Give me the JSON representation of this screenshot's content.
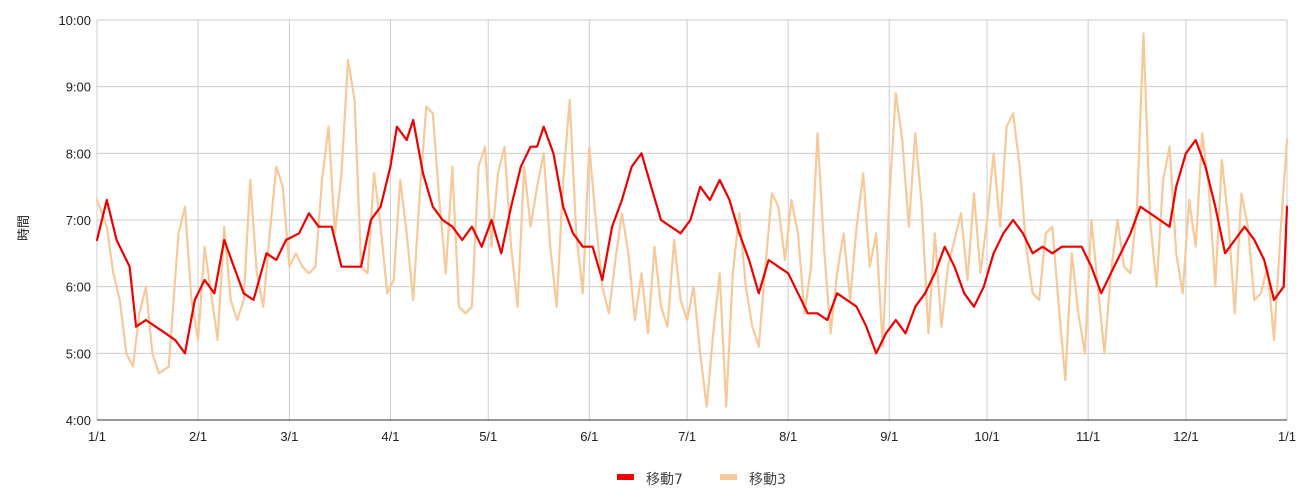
{
  "chart_data": {
    "type": "line",
    "ylabel": "時間",
    "xlabel": "",
    "title": "",
    "y_ticks": [
      "4:00",
      "5:00",
      "6:00",
      "7:00",
      "8:00",
      "9:00",
      "10:00"
    ],
    "ylim": [
      4,
      10
    ],
    "x_ticks": [
      "1/1",
      "2/1",
      "3/1",
      "4/1",
      "5/1",
      "6/1",
      "7/1",
      "8/1",
      "9/1",
      "10/1",
      "11/1",
      "12/1",
      "1/1"
    ],
    "x_unit": "day_of_year",
    "xlim": [
      0,
      365
    ],
    "grid": true,
    "legend": {
      "position": "bottom"
    },
    "series": [
      {
        "name": "移動7",
        "color": "#ee0000",
        "points": [
          [
            0,
            6.7
          ],
          [
            3,
            7.3
          ],
          [
            6,
            6.7
          ],
          [
            10,
            6.3
          ],
          [
            12,
            5.4
          ],
          [
            15,
            5.5
          ],
          [
            18,
            5.4
          ],
          [
            21,
            5.3
          ],
          [
            24,
            5.2
          ],
          [
            27,
            5.0
          ],
          [
            30,
            5.8
          ],
          [
            33,
            6.1
          ],
          [
            36,
            5.9
          ],
          [
            39,
            6.7
          ],
          [
            42,
            6.3
          ],
          [
            45,
            5.9
          ],
          [
            48,
            5.8
          ],
          [
            52,
            6.5
          ],
          [
            55,
            6.4
          ],
          [
            58,
            6.7
          ],
          [
            62,
            6.8
          ],
          [
            65,
            7.1
          ],
          [
            68,
            6.9
          ],
          [
            72,
            6.9
          ],
          [
            75,
            6.3
          ],
          [
            78,
            6.3
          ],
          [
            81,
            6.3
          ],
          [
            84,
            7.0
          ],
          [
            87,
            7.2
          ],
          [
            90,
            7.8
          ],
          [
            92,
            8.4
          ],
          [
            95,
            8.2
          ],
          [
            97,
            8.5
          ],
          [
            100,
            7.7
          ],
          [
            103,
            7.2
          ],
          [
            106,
            7.0
          ],
          [
            109,
            6.9
          ],
          [
            112,
            6.7
          ],
          [
            115,
            6.9
          ],
          [
            118,
            6.6
          ],
          [
            121,
            7.0
          ],
          [
            124,
            6.5
          ],
          [
            127,
            7.2
          ],
          [
            130,
            7.8
          ],
          [
            133,
            8.1
          ],
          [
            135,
            8.1
          ],
          [
            137,
            8.4
          ],
          [
            140,
            8.0
          ],
          [
            143,
            7.2
          ],
          [
            146,
            6.8
          ],
          [
            149,
            6.6
          ],
          [
            152,
            6.6
          ],
          [
            155,
            6.1
          ],
          [
            158,
            6.9
          ],
          [
            161,
            7.3
          ],
          [
            164,
            7.8
          ],
          [
            167,
            8.0
          ],
          [
            170,
            7.5
          ],
          [
            173,
            7.0
          ],
          [
            176,
            6.9
          ],
          [
            179,
            6.8
          ],
          [
            182,
            7.0
          ],
          [
            185,
            7.5
          ],
          [
            188,
            7.3
          ],
          [
            191,
            7.6
          ],
          [
            194,
            7.3
          ],
          [
            197,
            6.8
          ],
          [
            200,
            6.4
          ],
          [
            203,
            5.9
          ],
          [
            206,
            6.4
          ],
          [
            209,
            6.3
          ],
          [
            212,
            6.2
          ],
          [
            215,
            5.9
          ],
          [
            218,
            5.6
          ],
          [
            221,
            5.6
          ],
          [
            224,
            5.5
          ],
          [
            227,
            5.9
          ],
          [
            230,
            5.8
          ],
          [
            233,
            5.7
          ],
          [
            236,
            5.4
          ],
          [
            239,
            5.0
          ],
          [
            242,
            5.3
          ],
          [
            245,
            5.5
          ],
          [
            248,
            5.3
          ],
          [
            251,
            5.7
          ],
          [
            254,
            5.9
          ],
          [
            257,
            6.2
          ],
          [
            260,
            6.6
          ],
          [
            263,
            6.3
          ],
          [
            266,
            5.9
          ],
          [
            269,
            5.7
          ],
          [
            272,
            6.0
          ],
          [
            275,
            6.5
          ],
          [
            278,
            6.8
          ],
          [
            281,
            7.0
          ],
          [
            284,
            6.8
          ],
          [
            287,
            6.5
          ],
          [
            290,
            6.6
          ],
          [
            293,
            6.5
          ],
          [
            296,
            6.6
          ],
          [
            299,
            6.6
          ],
          [
            302,
            6.6
          ],
          [
            305,
            6.3
          ],
          [
            308,
            5.9
          ],
          [
            311,
            6.2
          ],
          [
            314,
            6.5
          ],
          [
            317,
            6.8
          ],
          [
            320,
            7.2
          ],
          [
            323,
            7.1
          ],
          [
            326,
            7.0
          ],
          [
            329,
            6.9
          ],
          [
            331,
            7.5
          ],
          [
            334,
            8.0
          ],
          [
            337,
            8.2
          ],
          [
            340,
            7.8
          ],
          [
            343,
            7.2
          ],
          [
            346,
            6.5
          ],
          [
            349,
            6.7
          ],
          [
            352,
            6.9
          ],
          [
            355,
            6.7
          ],
          [
            358,
            6.4
          ],
          [
            361,
            5.8
          ],
          [
            364,
            6.0
          ],
          [
            365,
            7.2
          ]
        ]
      },
      {
        "name": "移動3",
        "color": "#f7c99a",
        "points": [
          [
            0,
            7.3
          ],
          [
            3,
            6.9
          ],
          [
            5,
            6.2
          ],
          [
            7,
            5.8
          ],
          [
            9,
            5.0
          ],
          [
            11,
            4.8
          ],
          [
            13,
            5.6
          ],
          [
            15,
            6.0
          ],
          [
            17,
            5.0
          ],
          [
            19,
            4.7
          ],
          [
            22,
            4.8
          ],
          [
            25,
            6.8
          ],
          [
            27,
            7.2
          ],
          [
            29,
            5.8
          ],
          [
            31,
            5.2
          ],
          [
            33,
            6.6
          ],
          [
            35,
            5.9
          ],
          [
            37,
            5.2
          ],
          [
            39,
            6.9
          ],
          [
            41,
            5.8
          ],
          [
            43,
            5.5
          ],
          [
            45,
            5.8
          ],
          [
            47,
            7.6
          ],
          [
            49,
            6.2
          ],
          [
            51,
            5.7
          ],
          [
            53,
            6.8
          ],
          [
            55,
            7.8
          ],
          [
            57,
            7.5
          ],
          [
            59,
            6.3
          ],
          [
            61,
            6.5
          ],
          [
            63,
            6.3
          ],
          [
            65,
            6.2
          ],
          [
            67,
            6.3
          ],
          [
            69,
            7.6
          ],
          [
            71,
            8.4
          ],
          [
            73,
            6.8
          ],
          [
            75,
            7.7
          ],
          [
            77,
            9.4
          ],
          [
            79,
            8.8
          ],
          [
            81,
            6.3
          ],
          [
            83,
            6.2
          ],
          [
            85,
            7.7
          ],
          [
            87,
            6.9
          ],
          [
            89,
            5.9
          ],
          [
            91,
            6.1
          ],
          [
            93,
            7.6
          ],
          [
            95,
            6.8
          ],
          [
            97,
            5.8
          ],
          [
            99,
            7.4
          ],
          [
            101,
            8.7
          ],
          [
            103,
            8.6
          ],
          [
            105,
            7.3
          ],
          [
            107,
            6.2
          ],
          [
            109,
            7.8
          ],
          [
            111,
            5.7
          ],
          [
            113,
            5.6
          ],
          [
            115,
            5.7
          ],
          [
            117,
            7.8
          ],
          [
            119,
            8.1
          ],
          [
            121,
            6.6
          ],
          [
            123,
            7.7
          ],
          [
            125,
            8.1
          ],
          [
            127,
            6.6
          ],
          [
            129,
            5.7
          ],
          [
            131,
            7.8
          ],
          [
            133,
            6.9
          ],
          [
            135,
            7.5
          ],
          [
            137,
            8.0
          ],
          [
            139,
            6.6
          ],
          [
            141,
            5.7
          ],
          [
            143,
            7.6
          ],
          [
            145,
            8.8
          ],
          [
            147,
            6.8
          ],
          [
            149,
            5.9
          ],
          [
            151,
            8.1
          ],
          [
            153,
            7.0
          ],
          [
            155,
            6.0
          ],
          [
            157,
            5.6
          ],
          [
            159,
            6.4
          ],
          [
            161,
            7.1
          ],
          [
            163,
            6.5
          ],
          [
            165,
            5.5
          ],
          [
            167,
            6.2
          ],
          [
            169,
            5.3
          ],
          [
            171,
            6.6
          ],
          [
            173,
            5.7
          ],
          [
            175,
            5.4
          ],
          [
            177,
            6.7
          ],
          [
            179,
            5.8
          ],
          [
            181,
            5.5
          ],
          [
            183,
            6.0
          ],
          [
            185,
            5.0
          ],
          [
            187,
            4.2
          ],
          [
            189,
            5.3
          ],
          [
            191,
            6.2
          ],
          [
            193,
            4.2
          ],
          [
            195,
            6.2
          ],
          [
            197,
            7.1
          ],
          [
            199,
            6.0
          ],
          [
            201,
            5.4
          ],
          [
            203,
            5.1
          ],
          [
            205,
            6.3
          ],
          [
            207,
            7.4
          ],
          [
            209,
            7.2
          ],
          [
            211,
            6.4
          ],
          [
            213,
            7.3
          ],
          [
            215,
            6.8
          ],
          [
            217,
            5.6
          ],
          [
            219,
            6.3
          ],
          [
            221,
            8.3
          ],
          [
            223,
            6.6
          ],
          [
            225,
            5.3
          ],
          [
            227,
            6.2
          ],
          [
            229,
            6.8
          ],
          [
            231,
            5.8
          ],
          [
            233,
            6.9
          ],
          [
            235,
            7.7
          ],
          [
            237,
            6.3
          ],
          [
            239,
            6.8
          ],
          [
            241,
            5.1
          ],
          [
            243,
            7.3
          ],
          [
            245,
            8.9
          ],
          [
            247,
            8.2
          ],
          [
            249,
            6.9
          ],
          [
            251,
            8.3
          ],
          [
            253,
            7.2
          ],
          [
            255,
            5.3
          ],
          [
            257,
            6.8
          ],
          [
            259,
            5.4
          ],
          [
            261,
            6.3
          ],
          [
            263,
            6.7
          ],
          [
            265,
            7.1
          ],
          [
            267,
            6.1
          ],
          [
            269,
            7.4
          ],
          [
            271,
            6.2
          ],
          [
            273,
            7.0
          ],
          [
            275,
            8.0
          ],
          [
            277,
            6.9
          ],
          [
            279,
            8.4
          ],
          [
            281,
            8.6
          ],
          [
            283,
            7.8
          ],
          [
            285,
            6.6
          ],
          [
            287,
            5.9
          ],
          [
            289,
            5.8
          ],
          [
            291,
            6.8
          ],
          [
            293,
            6.9
          ],
          [
            295,
            5.7
          ],
          [
            297,
            4.6
          ],
          [
            299,
            6.5
          ],
          [
            301,
            5.6
          ],
          [
            303,
            5.0
          ],
          [
            305,
            7.0
          ],
          [
            307,
            6.0
          ],
          [
            309,
            5.0
          ],
          [
            311,
            6.2
          ],
          [
            313,
            7.0
          ],
          [
            315,
            6.3
          ],
          [
            317,
            6.2
          ],
          [
            319,
            7.2
          ],
          [
            321,
            9.8
          ],
          [
            323,
            7.0
          ],
          [
            325,
            6.0
          ],
          [
            327,
            7.6
          ],
          [
            329,
            8.1
          ],
          [
            331,
            6.5
          ],
          [
            333,
            5.9
          ],
          [
            335,
            7.3
          ],
          [
            337,
            6.6
          ],
          [
            339,
            8.3
          ],
          [
            341,
            7.5
          ],
          [
            343,
            6.0
          ],
          [
            345,
            7.9
          ],
          [
            347,
            7.0
          ],
          [
            349,
            5.6
          ],
          [
            351,
            7.4
          ],
          [
            353,
            6.9
          ],
          [
            355,
            5.8
          ],
          [
            357,
            5.9
          ],
          [
            359,
            6.3
          ],
          [
            361,
            5.2
          ],
          [
            363,
            6.8
          ],
          [
            364,
            7.5
          ],
          [
            365,
            8.2
          ]
        ]
      }
    ]
  }
}
